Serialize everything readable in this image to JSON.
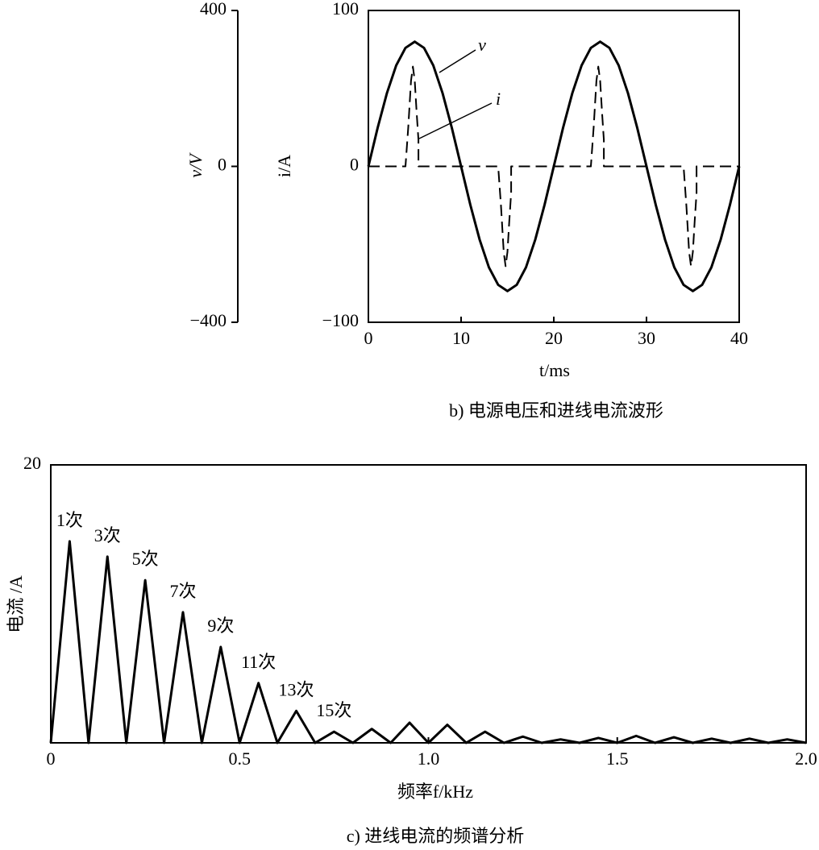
{
  "chart_data": [
    {
      "type": "line",
      "title": "b) 电源电压和进线电流波形",
      "xlabel": "t/ms",
      "ylabel": "i/A",
      "y2label": "v/V",
      "xlim": [
        0,
        40
      ],
      "xticks": [
        0,
        10,
        20,
        30,
        40
      ],
      "ylim": [
        -100,
        100
      ],
      "yticks": [
        {
          "value": -100,
          "label": "−100"
        },
        0,
        100
      ],
      "y2lim": [
        -400,
        400
      ],
      "y2ticks": [
        {
          "value": -400,
          "label": "−400"
        },
        0,
        400
      ],
      "series": [
        {
          "name": "v",
          "color": "#000000",
          "style": "solid",
          "axis": "y2",
          "x": [
            0,
            1,
            2,
            3,
            4,
            5,
            6,
            7,
            8,
            9,
            10,
            11,
            12,
            13,
            14,
            15,
            16,
            17,
            18,
            19,
            20,
            21,
            22,
            23,
            24,
            25,
            26,
            27,
            28,
            29,
            30,
            31,
            32,
            33,
            34,
            35,
            36,
            37,
            38,
            39,
            40
          ],
          "values": [
            0,
            99,
            188,
            259,
            304,
            320,
            304,
            259,
            188,
            99,
            0,
            -99,
            -188,
            -259,
            -304,
            -320,
            -304,
            -259,
            -188,
            -99,
            0,
            99,
            188,
            259,
            304,
            320,
            304,
            259,
            188,
            99,
            0,
            -99,
            -188,
            -259,
            -304,
            -320,
            -304,
            -259,
            -188,
            -99,
            0
          ]
        },
        {
          "name": "i",
          "color": "#000000",
          "style": "dashed",
          "x": [
            0,
            4,
            4.3,
            4.6,
            4.8,
            5,
            5.2,
            5.4,
            5.4,
            14,
            14.3,
            14.6,
            14.8,
            15,
            15.2,
            15.4,
            15.4,
            24,
            24.3,
            24.6,
            24.8,
            25,
            25.2,
            25.4,
            25.4,
            34,
            34.3,
            34.6,
            34.8,
            35,
            35.2,
            35.4,
            35.4,
            40
          ],
          "values": [
            0,
            0,
            25,
            55,
            64,
            55,
            35,
            17,
            0,
            0,
            -25,
            -55,
            -64,
            -55,
            -35,
            -17,
            0,
            0,
            25,
            55,
            64,
            55,
            35,
            17,
            0,
            0,
            -25,
            -55,
            -64,
            -55,
            -35,
            -17,
            0,
            0
          ]
        }
      ]
    },
    {
      "type": "line",
      "title": "c) 进线电流的频谱分析",
      "xlabel": "频率f/kHz",
      "ylabel": "电流 /A",
      "xlim": [
        0,
        2
      ],
      "xticks": [
        0,
        0.5,
        {
          "value": 1,
          "label": "1.0"
        },
        1.5,
        {
          "value": 2,
          "label": "2.0"
        }
      ],
      "ylim": [
        0,
        20
      ],
      "yticks": [
        20
      ],
      "annotations": [
        "1次",
        "3次",
        "5次",
        "7次",
        "9次",
        "11次",
        "13次",
        "15次"
      ],
      "x": [
        0,
        0.05,
        0.1,
        0.15,
        0.2,
        0.25,
        0.3,
        0.35,
        0.4,
        0.45,
        0.5,
        0.55,
        0.6,
        0.65,
        0.7,
        0.75,
        0.8,
        0.85,
        0.9,
        0.95,
        1,
        1.05,
        1.1,
        1.15,
        1.2,
        1.25,
        1.3,
        1.35,
        1.4,
        1.45,
        1.5,
        1.55,
        1.6,
        1.65,
        1.7,
        1.75,
        1.8,
        1.85,
        1.9,
        1.95,
        2
      ],
      "series": [
        {
          "color": "#000000",
          "style": "solid",
          "values": [
            0,
            14.5,
            0,
            13.4,
            0,
            11.7,
            0,
            9.4,
            0,
            6.9,
            0,
            4.3,
            0,
            2.3,
            0,
            0.8,
            0,
            1.0,
            0,
            1.45,
            0,
            1.3,
            0,
            0.8,
            0,
            0.45,
            0,
            0.25,
            0,
            0.35,
            0,
            0.5,
            0,
            0.4,
            0,
            0.3,
            0,
            0.3,
            0,
            0.25,
            0
          ]
        }
      ]
    }
  ]
}
